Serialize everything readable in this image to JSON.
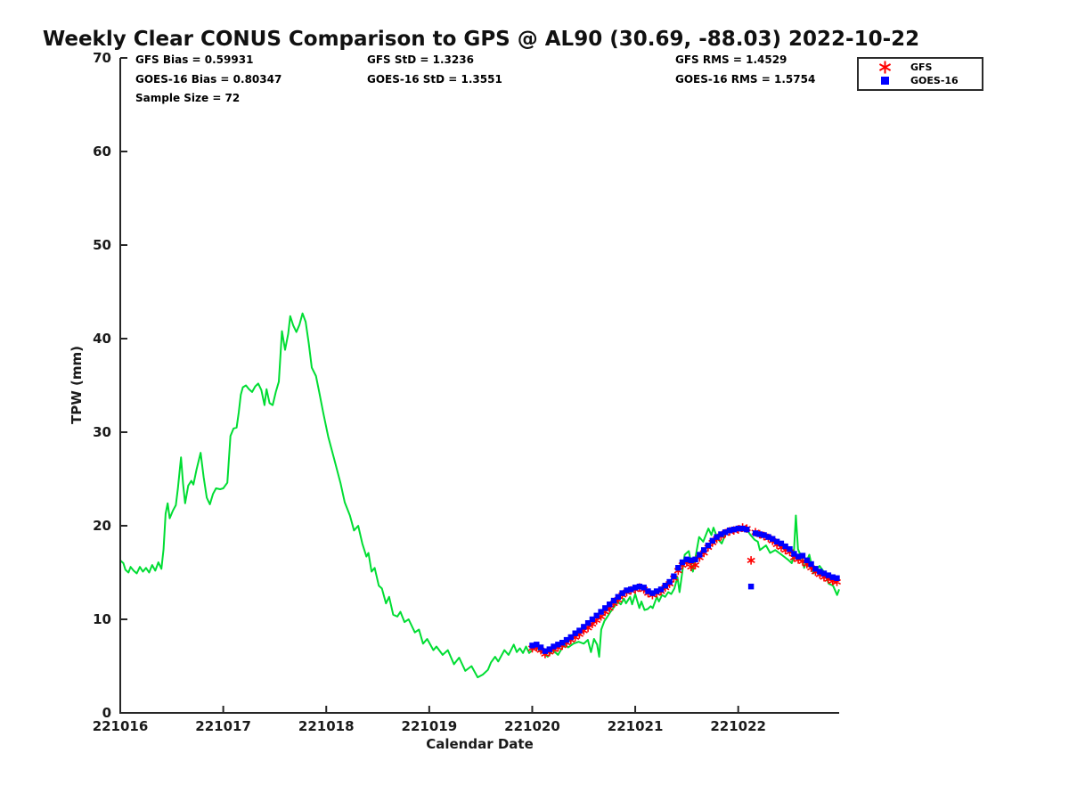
{
  "title": "Weekly Clear CONUS Comparison to GPS @ AL90 (30.69, -88.03) 2022-10-22",
  "stats": {
    "col1": [
      "GFS Bias = 0.59931",
      "GOES-16 Bias = 0.80347",
      "Sample Size = 72"
    ],
    "col2": [
      "GFS StD = 1.3236",
      "GOES-16 StD = 1.3551"
    ],
    "col3": [
      "GFS RMS = 1.4529",
      "GOES-16 RMS = 1.5754"
    ]
  },
  "legend": {
    "position": "top-right",
    "items": [
      {
        "label": "GFS",
        "marker": "asterisk",
        "color": "#ff0000"
      },
      {
        "label": "GOES-16",
        "marker": "square",
        "color": "#0000ff"
      }
    ]
  },
  "chart_data": {
    "type": "line+scatter",
    "title": "Weekly Clear CONUS Comparison to GPS @ AL90 (30.69, -88.03) 2022-10-22",
    "xlabel": "Calendar Date",
    "ylabel": "TPW (mm)",
    "xlim": [
      221016,
      221022.98
    ],
    "ylim": [
      0,
      70
    ],
    "xticks": [
      221016,
      221017,
      221018,
      221019,
      221020,
      221021,
      221022
    ],
    "yticks": [
      0,
      10,
      20,
      30,
      40,
      50,
      60,
      70
    ],
    "grid": false,
    "axis_color": "#262626",
    "scatter_x": [
      221020.0,
      221020.042,
      221020.083,
      221020.125,
      221020.167,
      221020.208,
      221020.25,
      221020.292,
      221020.333,
      221020.375,
      221020.417,
      221020.458,
      221020.5,
      221020.542,
      221020.583,
      221020.625,
      221020.667,
      221020.708,
      221020.75,
      221020.792,
      221020.833,
      221020.875,
      221020.917,
      221020.958,
      221021.0,
      221021.042,
      221021.083,
      221021.125,
      221021.167,
      221021.208,
      221021.25,
      221021.292,
      221021.333,
      221021.375,
      221021.417,
      221021.458,
      221021.5,
      221021.542,
      221021.583,
      221021.625,
      221021.667,
      221021.708,
      221021.75,
      221021.792,
      221021.833,
      221021.875,
      221021.917,
      221021.958,
      221022.0,
      221022.042,
      221022.083,
      221022.125,
      221022.167,
      221022.208,
      221022.25,
      221022.292,
      221022.333,
      221022.375,
      221022.417,
      221022.458,
      221022.5,
      221022.542,
      221022.583,
      221022.625,
      221022.667,
      221022.708,
      221022.75,
      221022.792,
      221022.833,
      221022.875,
      221022.917,
      221022.958
    ],
    "series": [
      {
        "name": "GPS",
        "type": "line",
        "color": "#00dd33",
        "x": [
          221016.0,
          221016.03,
          221016.05,
          221016.08,
          221016.1,
          221016.13,
          221016.16,
          221016.19,
          221016.22,
          221016.25,
          221016.28,
          221016.31,
          221016.34,
          221016.37,
          221016.4,
          221016.42,
          221016.44,
          221016.46,
          221016.48,
          221016.51,
          221016.54,
          221016.56,
          221016.59,
          221016.61,
          221016.63,
          221016.66,
          221016.69,
          221016.71,
          221016.74,
          221016.78,
          221016.81,
          221016.84,
          221016.87,
          221016.9,
          221016.93,
          221016.97,
          221017.0,
          221017.04,
          221017.07,
          221017.1,
          221017.13,
          221017.15,
          221017.17,
          221017.19,
          221017.22,
          221017.25,
          221017.28,
          221017.31,
          221017.34,
          221017.37,
          221017.4,
          221017.42,
          221017.45,
          221017.48,
          221017.51,
          221017.54,
          221017.57,
          221017.6,
          221017.63,
          221017.65,
          221017.68,
          221017.71,
          221017.74,
          221017.77,
          221017.8,
          221017.83,
          221017.86,
          221017.9,
          221017.93,
          221017.97,
          221018.02,
          221018.08,
          221018.14,
          221018.18,
          221018.23,
          221018.27,
          221018.31,
          221018.35,
          221018.39,
          221018.41,
          221018.44,
          221018.47,
          221018.51,
          221018.54,
          221018.58,
          221018.61,
          221018.65,
          221018.69,
          221018.72,
          221018.76,
          221018.8,
          221018.86,
          221018.9,
          221018.94,
          221018.98,
          221019.04,
          221019.07,
          221019.13,
          221019.18,
          221019.24,
          221019.29,
          221019.35,
          221019.41,
          221019.47,
          221019.52,
          221019.57,
          221019.6,
          221019.64,
          221019.67,
          221019.73,
          221019.77,
          221019.82,
          221019.85,
          221019.88,
          221019.91,
          221019.94,
          221019.97,
          221020.0,
          221020.04,
          221020.07,
          221020.11,
          221020.15,
          221020.2,
          221020.25,
          221020.31,
          221020.35,
          221020.4,
          221020.45,
          221020.5,
          221020.54,
          221020.57,
          221020.6,
          221020.63,
          221020.65,
          221020.67,
          221020.7,
          221020.73,
          221020.76,
          221020.8,
          221020.83,
          221020.86,
          221020.89,
          221020.91,
          221020.95,
          221020.97,
          221021.0,
          221021.04,
          221021.06,
          221021.09,
          221021.12,
          221021.15,
          221021.17,
          221021.21,
          221021.23,
          221021.26,
          221021.29,
          221021.32,
          221021.35,
          221021.38,
          221021.41,
          221021.43,
          221021.48,
          221021.52,
          221021.56,
          221021.62,
          221021.66,
          221021.71,
          221021.74,
          221021.76,
          221021.8,
          221021.84,
          221021.88,
          221021.93,
          221021.97,
          221022.02,
          221022.07,
          221022.12,
          221022.16,
          221022.19,
          221022.21,
          221022.27,
          221022.31,
          221022.36,
          221022.42,
          221022.48,
          221022.52,
          221022.54,
          221022.56,
          221022.58,
          221022.62,
          221022.64,
          221022.69,
          221022.73,
          221022.79,
          221022.83,
          221022.88,
          221022.92,
          221022.96,
          221022.98
        ],
        "y": [
          16.3,
          16.0,
          15.3,
          15.0,
          15.6,
          15.2,
          14.9,
          15.6,
          15.1,
          15.5,
          15.0,
          15.8,
          15.2,
          16.1,
          15.4,
          17.5,
          21.3,
          22.4,
          20.8,
          21.6,
          22.2,
          24.0,
          27.3,
          24.5,
          22.4,
          24.3,
          24.8,
          24.4,
          26.0,
          27.8,
          25.2,
          23.0,
          22.3,
          23.4,
          24.0,
          23.9,
          24.0,
          24.6,
          29.6,
          30.4,
          30.5,
          32.1,
          34.0,
          34.8,
          35.0,
          34.6,
          34.3,
          34.9,
          35.2,
          34.5,
          32.9,
          34.6,
          33.1,
          32.9,
          34.3,
          35.4,
          40.8,
          38.8,
          40.5,
          42.4,
          41.4,
          40.7,
          41.5,
          42.7,
          41.8,
          39.5,
          36.9,
          36.0,
          34.4,
          32.1,
          29.5,
          27.0,
          24.5,
          22.5,
          21.1,
          19.5,
          20.0,
          18.1,
          16.7,
          17.1,
          15.1,
          15.5,
          13.6,
          13.3,
          11.7,
          12.4,
          10.5,
          10.3,
          10.8,
          9.7,
          10.0,
          8.6,
          8.9,
          7.4,
          7.9,
          6.7,
          7.1,
          6.2,
          6.7,
          5.2,
          5.9,
          4.5,
          5.0,
          3.8,
          4.1,
          4.6,
          5.4,
          6.0,
          5.5,
          6.7,
          6.2,
          7.3,
          6.5,
          6.9,
          6.4,
          7.1,
          6.4,
          6.7,
          7.2,
          6.6,
          6.4,
          6.0,
          6.7,
          6.2,
          7.3,
          7.0,
          7.4,
          7.6,
          7.4,
          7.8,
          6.5,
          7.9,
          7.3,
          6.0,
          8.9,
          9.8,
          10.3,
          10.8,
          11.4,
          11.9,
          11.6,
          12.2,
          11.7,
          12.4,
          11.6,
          12.7,
          11.2,
          11.9,
          11.0,
          11.1,
          11.4,
          11.2,
          12.4,
          11.9,
          12.6,
          12.4,
          12.9,
          12.7,
          13.3,
          14.5,
          12.9,
          16.9,
          17.3,
          15.1,
          18.8,
          18.3,
          19.7,
          19.0,
          19.8,
          18.6,
          18.1,
          19.2,
          19.5,
          19.7,
          19.5,
          19.8,
          19.0,
          18.5,
          18.3,
          17.4,
          17.9,
          17.1,
          17.4,
          16.9,
          16.4,
          16.0,
          17.0,
          21.1,
          17.5,
          16.5,
          15.5,
          16.9,
          14.9,
          15.7,
          15.1,
          13.8,
          13.6,
          12.6,
          13.2
        ]
      },
      {
        "name": "GFS",
        "type": "scatter",
        "marker": "asterisk",
        "color": "#ff0000",
        "x": "scatter_x",
        "y": [
          6.9,
          7.0,
          6.7,
          6.3,
          6.5,
          6.8,
          7.0,
          7.2,
          7.5,
          7.8,
          8.1,
          8.4,
          8.8,
          9.1,
          9.5,
          9.9,
          10.3,
          10.8,
          11.2,
          11.7,
          12.1,
          12.6,
          12.9,
          13.1,
          13.2,
          13.4,
          13.2,
          12.8,
          12.6,
          12.8,
          13.0,
          13.4,
          13.8,
          14.4,
          15.2,
          15.8,
          16.1,
          15.6,
          15.8,
          16.6,
          17.1,
          17.7,
          18.2,
          18.6,
          18.9,
          19.2,
          19.4,
          19.5,
          19.6,
          19.8,
          19.7,
          16.3,
          19.3,
          19.1,
          18.9,
          18.7,
          18.4,
          18.0,
          17.7,
          17.4,
          17.2,
          16.6,
          16.4,
          16.2,
          15.9,
          15.5,
          15.1,
          14.8,
          14.5,
          14.3,
          14.1,
          14.0
        ]
      },
      {
        "name": "GOES-16",
        "type": "scatter",
        "marker": "square",
        "color": "#0000ff",
        "x": "scatter_x",
        "y": [
          7.2,
          7.3,
          7.0,
          6.6,
          6.8,
          7.1,
          7.3,
          7.5,
          7.8,
          8.1,
          8.5,
          8.8,
          9.2,
          9.6,
          10.0,
          10.4,
          10.8,
          11.2,
          11.6,
          12.0,
          12.4,
          12.8,
          13.1,
          13.2,
          13.4,
          13.5,
          13.4,
          13.0,
          12.8,
          13.0,
          13.2,
          13.6,
          14.0,
          14.6,
          15.5,
          16.1,
          16.4,
          16.3,
          16.4,
          16.9,
          17.4,
          17.9,
          18.4,
          18.8,
          19.1,
          19.3,
          19.5,
          19.6,
          19.7,
          19.7,
          19.6,
          13.5,
          19.2,
          19.1,
          19.0,
          18.8,
          18.6,
          18.3,
          18.1,
          17.8,
          17.5,
          17.0,
          16.7,
          16.8,
          16.3,
          15.9,
          15.4,
          15.1,
          14.9,
          14.7,
          14.5,
          14.4
        ]
      }
    ]
  }
}
